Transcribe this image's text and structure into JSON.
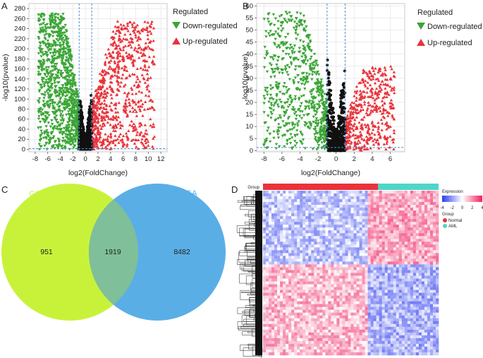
{
  "panels": {
    "A": "A",
    "B": "B",
    "C": "C",
    "D": "D"
  },
  "colors": {
    "down": "#3aa535",
    "up": "#e8333a",
    "ns": "#111111",
    "threshold": "#4a90d9",
    "venn_left": "#c8f23a",
    "venn_right": "#5aaee6",
    "venn_overlap": "#7fbf9a",
    "normal": "#e8333a",
    "aml": "#4fd6c8"
  },
  "chart_data": [
    {
      "id": "volcano-A",
      "type": "scatter",
      "xlabel": "log2(FoldChange)",
      "ylabel": "-log10(pvalue)",
      "xlim": [
        -9,
        13
      ],
      "ylim": [
        -5,
        290
      ],
      "x_ticks": [
        -8,
        -6,
        -4,
        -2,
        0,
        2,
        4,
        6,
        8,
        10,
        12
      ],
      "y_ticks": [
        0,
        20,
        40,
        60,
        80,
        100,
        120,
        140,
        160,
        180,
        200,
        220,
        240,
        260,
        280
      ],
      "x_tick_labels": [
        "-8",
        "-6",
        "-4",
        "-2",
        "0",
        "2",
        "4",
        "6",
        "8",
        "10",
        "12"
      ],
      "y_tick_labels": [
        "0",
        "20",
        "40",
        "60",
        "80",
        "100",
        "120",
        "140",
        "160",
        "180",
        "200",
        "220",
        "240",
        "260",
        "280"
      ],
      "vlines": [
        -1,
        1
      ],
      "hline": 1.3,
      "legend": {
        "title": "Regulated",
        "items": [
          {
            "name": "Down-regulated",
            "marker": "triangle-down"
          },
          {
            "name": "Up-regulated",
            "marker": "triangle-up"
          }
        ]
      },
      "series": [
        {
          "name": "Down-regulated",
          "marker": "triangle-down",
          "n": 1100,
          "x_range": [
            -7.5,
            -1
          ],
          "y_max": 270,
          "seed": 11
        },
        {
          "name": "Up-regulated",
          "marker": "triangle-up",
          "n": 750,
          "x_range": [
            1,
            11
          ],
          "y_max": 255,
          "seed": 23
        },
        {
          "name": "Not significant",
          "marker": "dot",
          "n": 500,
          "x_range": [
            -1,
            1
          ],
          "y_max": 120,
          "seed": 37
        }
      ]
    },
    {
      "id": "volcano-B",
      "type": "scatter",
      "xlabel": "log2(FoldChange)",
      "ylabel": "-log10(pvalue)",
      "xlim": [
        -8.8,
        7.6
      ],
      "ylim": [
        -0.5,
        61
      ],
      "x_ticks": [
        -8,
        -6,
        -4,
        -2,
        0,
        2,
        4,
        6
      ],
      "y_ticks": [
        0,
        5,
        10,
        15,
        20,
        25,
        30,
        35,
        40,
        45,
        50,
        55,
        60
      ],
      "x_tick_labels": [
        "-8",
        "-6",
        "-4",
        "-2",
        "0",
        "2",
        "4",
        "6"
      ],
      "y_tick_labels": [
        "0",
        "5",
        "10",
        "15",
        "20",
        "25",
        "30",
        "35",
        "40",
        "45",
        "50",
        "55",
        "60"
      ],
      "vlines": [
        -1,
        1
      ],
      "hline": 1.3,
      "legend": {
        "title": "Regulated",
        "items": [
          {
            "name": "Down-regulated",
            "marker": "triangle-down"
          },
          {
            "name": "Up-regulated",
            "marker": "triangle-up"
          }
        ]
      },
      "series": [
        {
          "name": "Down-regulated",
          "marker": "triangle-down",
          "n": 700,
          "x_range": [
            -8,
            -1
          ],
          "y_max": 58,
          "seed": 53
        },
        {
          "name": "Up-regulated",
          "marker": "triangle-up",
          "n": 450,
          "x_range": [
            1,
            6.5
          ],
          "y_max": 35,
          "seed": 71
        },
        {
          "name": "Not significant",
          "marker": "dot",
          "n": 550,
          "x_range": [
            -1,
            1
          ],
          "y_max": 40,
          "seed": 89
        }
      ]
    },
    {
      "id": "venn-C",
      "type": "venn",
      "sets": [
        {
          "name": "GSE114868",
          "only": "951"
        },
        {
          "name": "TCGA",
          "only": "8482"
        }
      ],
      "intersection": "1919"
    },
    {
      "id": "heatmap-D",
      "type": "heatmap",
      "column_groups": [
        {
          "name": "Normal",
          "fraction": 0.6
        },
        {
          "name": "AML",
          "fraction": 0.4
        }
      ],
      "row_blocks": [
        {
          "fraction": 0.45,
          "normal": "low",
          "aml": "high"
        },
        {
          "fraction": 0.55,
          "normal": "high",
          "aml": "low"
        }
      ],
      "group_label": "Group",
      "legend": {
        "title": "Expression",
        "scale_ticks": [
          "-4",
          "-2",
          "0",
          "2",
          "4"
        ],
        "group_title": "Group",
        "groups": [
          "Normal",
          "AML"
        ]
      }
    }
  ]
}
